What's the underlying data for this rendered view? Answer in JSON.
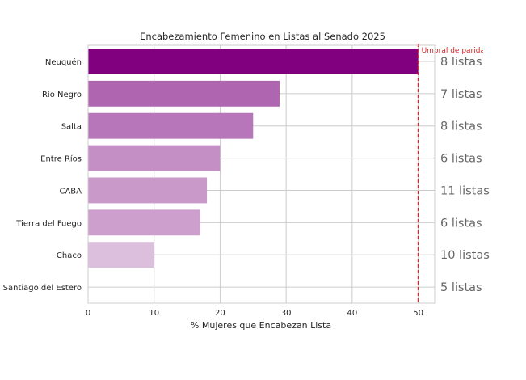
{
  "chart_data": {
    "type": "bar",
    "orientation": "horizontal",
    "title": "Encabezamiento Femenino en Listas al Senado 2025",
    "xlabel": "% Mujeres que Encabezan Lista",
    "ylabel": "",
    "xlim": [
      0,
      52.5
    ],
    "xticks": [
      "0",
      "10",
      "20",
      "30",
      "40",
      "50"
    ],
    "grid": true,
    "categories": [
      "Neuquén",
      "Río Negro",
      "Salta",
      "Entre Ríos",
      "CABA",
      "Tierra del Fuego",
      "Chaco",
      "Santiago del Estero"
    ],
    "values": [
      50,
      29,
      25,
      20,
      18,
      17,
      10,
      0
    ],
    "list_counts": [
      "8 listas",
      "7 listas",
      "8 listas",
      "6 listas",
      "11 listas",
      "6 listas",
      "10 listas",
      "5 listas"
    ],
    "bar_colors": [
      "#800080",
      "#b065b0",
      "#b676b9",
      "#c48fc4",
      "#c999c9",
      "#cc9fcc",
      "#dcbfdc",
      "#f2e6f2"
    ],
    "reference_line": {
      "value": 50,
      "label": "Umbral de paridad",
      "color": "#d62728",
      "style": "dashed"
    }
  }
}
